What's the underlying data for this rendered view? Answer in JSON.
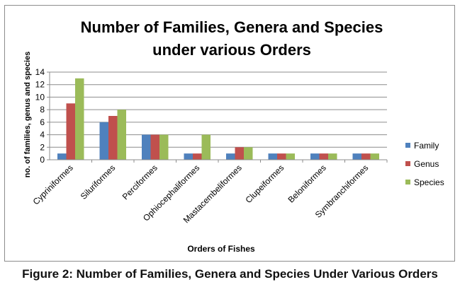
{
  "chart_data": {
    "type": "bar",
    "title_lines": [
      "Number of Families, Genera and Species",
      "under various Orders"
    ],
    "xlabel": "Orders of Fishes",
    "ylabel": "no. of families, genus and species",
    "categories": [
      "Cypriniformes",
      "Siluriformes",
      "Perciformes",
      "Ophiocephaliformes",
      "Mastacembeliformes",
      "Clupeiformes",
      "Beloniformes",
      "Symbranchiformes"
    ],
    "series": [
      {
        "name": "Family",
        "color": "#4f81bd",
        "values": [
          1,
          6,
          4,
          1,
          1,
          1,
          1,
          1
        ]
      },
      {
        "name": "Genus",
        "color": "#c0504d",
        "values": [
          9,
          7,
          4,
          1,
          2,
          1,
          1,
          1
        ]
      },
      {
        "name": "Species",
        "color": "#9bbb59",
        "values": [
          13,
          8,
          4,
          4,
          2,
          1,
          1,
          1
        ]
      }
    ],
    "ylim": [
      0,
      14
    ],
    "yticks": [
      0,
      2,
      4,
      6,
      8,
      10,
      12,
      14
    ],
    "grid": true,
    "legend_position": "right"
  },
  "caption": "Figure 2: Number of Families, Genera and Species Under Various Orders"
}
